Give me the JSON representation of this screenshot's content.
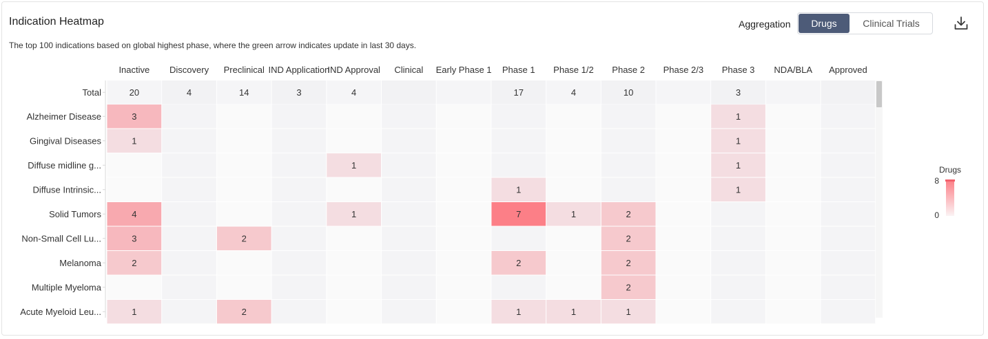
{
  "header": {
    "title": "Indication Heatmap",
    "subtitle": "The top 100 indications based on global highest phase, where the green arrow indicates update in last 30 days.",
    "aggregation_label": "Aggregation",
    "toggle_drugs": "Drugs",
    "toggle_trials": "Clinical Trials",
    "download_icon": "download-icon"
  },
  "colors": {
    "accent_dark": "#4d5b78",
    "heat_low": "#f4dde1",
    "heat_high": "#fc7f87",
    "cell_empty_a": "#f4f4f6",
    "cell_empty_b": "#fafafa"
  },
  "chart_data": {
    "type": "heatmap",
    "title": "Indication Heatmap",
    "columns": [
      "Inactive",
      "Discovery",
      "Preclinical",
      "IND Application",
      "IND Approval",
      "Clinical",
      "Early Phase 1",
      "Phase 1",
      "Phase 1/2",
      "Phase 2",
      "Phase 2/3",
      "Phase 3",
      "NDA/BLA",
      "Approved"
    ],
    "total": {
      "label": "Total",
      "values": [
        20,
        4,
        14,
        3,
        4,
        null,
        null,
        17,
        4,
        10,
        null,
        3,
        null,
        null
      ]
    },
    "rows": [
      {
        "label": "Alzheimer Disease",
        "values": [
          3,
          null,
          null,
          null,
          null,
          null,
          null,
          null,
          null,
          null,
          null,
          1,
          null,
          null
        ]
      },
      {
        "label": "Gingival Diseases",
        "values": [
          1,
          null,
          null,
          null,
          null,
          null,
          null,
          null,
          null,
          null,
          null,
          1,
          null,
          null
        ]
      },
      {
        "label": "Diffuse midline g...",
        "values": [
          null,
          null,
          null,
          null,
          1,
          null,
          null,
          null,
          null,
          null,
          null,
          1,
          null,
          null
        ]
      },
      {
        "label": "Diffuse Intrinsic...",
        "values": [
          null,
          null,
          null,
          null,
          null,
          null,
          null,
          1,
          null,
          null,
          null,
          1,
          null,
          null
        ]
      },
      {
        "label": "Solid Tumors",
        "values": [
          4,
          null,
          null,
          null,
          1,
          null,
          null,
          7,
          1,
          2,
          null,
          null,
          null,
          null
        ]
      },
      {
        "label": "Non-Small Cell Lu...",
        "values": [
          3,
          null,
          2,
          null,
          null,
          null,
          null,
          null,
          null,
          2,
          null,
          null,
          null,
          null
        ]
      },
      {
        "label": "Melanoma",
        "values": [
          2,
          null,
          null,
          null,
          null,
          null,
          null,
          2,
          null,
          2,
          null,
          null,
          null,
          null
        ]
      },
      {
        "label": "Multiple Myeloma",
        "values": [
          null,
          null,
          null,
          null,
          null,
          null,
          null,
          null,
          null,
          2,
          null,
          null,
          null,
          null
        ]
      },
      {
        "label": "Acute Myeloid Leu...",
        "values": [
          1,
          null,
          2,
          null,
          null,
          null,
          null,
          1,
          1,
          1,
          null,
          null,
          null,
          null
        ]
      }
    ],
    "legend": {
      "title": "Drugs",
      "max_label": "8",
      "min_label": "0",
      "range": [
        0,
        8
      ],
      "placement": "right"
    }
  }
}
